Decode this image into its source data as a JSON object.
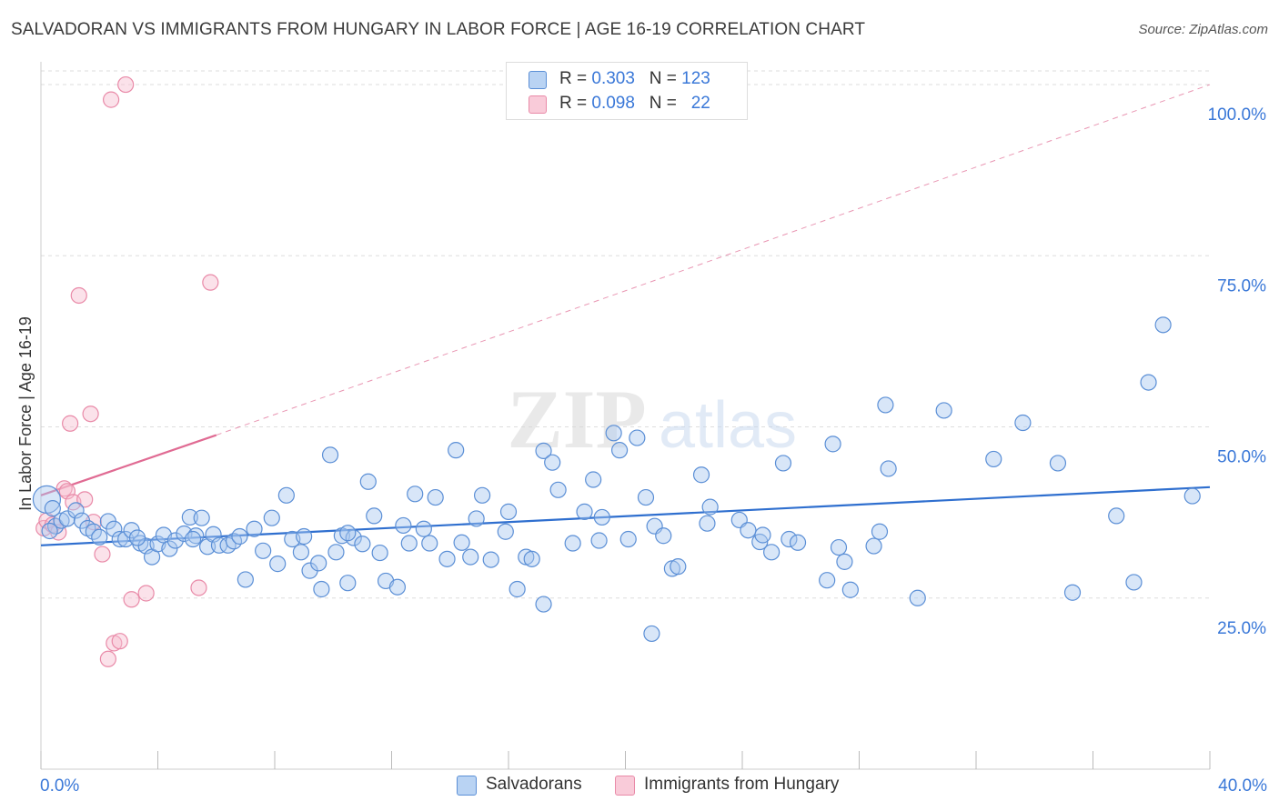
{
  "title": "SALVADORAN VS IMMIGRANTS FROM HUNGARY IN LABOR FORCE | AGE 16-19 CORRELATION CHART",
  "source": "Source: ZipAtlas.com",
  "watermark": {
    "zip": "ZIP",
    "atlas": "atlas"
  },
  "legend": {
    "r_label": "R =",
    "n_label": "N =",
    "series1": {
      "r": "0.303",
      "n": "123"
    },
    "series2": {
      "r": "0.098",
      "n": "22"
    }
  },
  "bottom_legend": {
    "series1": "Salvadorans",
    "series2": "Immigrants from Hungary"
  },
  "colors": {
    "blue_fill": "#a8c8f0",
    "blue_stroke": "#5b8fd6",
    "blue_line": "#2f6fcf",
    "pink_fill": "#f7bfd0",
    "pink_stroke": "#e98aa8",
    "pink_line": "#e06b93",
    "axis_text": "#3a78d8",
    "grid": "#dddddd"
  },
  "chart_data": {
    "type": "scatter",
    "title": "SALVADORAN VS IMMIGRANTS FROM HUNGARY IN LABOR FORCE | AGE 16-19 CORRELATION CHART",
    "xlabel": "",
    "ylabel": "In Labor Force | Age 16-19",
    "xlim": [
      0,
      40
    ],
    "ylim": [
      0,
      102
    ],
    "x_tick_labels": [
      {
        "value": 0,
        "label": "0.0%"
      },
      {
        "value": 40,
        "label": "40.0%"
      }
    ],
    "y_tick_labels": [
      {
        "value": 25,
        "label": "25.0%"
      },
      {
        "value": 50,
        "label": "50.0%"
      },
      {
        "value": 75,
        "label": "75.0%"
      },
      {
        "value": 100,
        "label": "100.0%"
      }
    ],
    "series": [
      {
        "name": "Salvadorans",
        "r": 0.303,
        "n": 123,
        "trend": {
          "x0": 0,
          "y0": 32.7,
          "x1": 40,
          "y1": 41.2
        },
        "points": [
          [
            0.2,
            39.4
          ],
          [
            0.5,
            35.5
          ],
          [
            0.7,
            36.3
          ],
          [
            0.9,
            36.6
          ],
          [
            1.2,
            37.8
          ],
          [
            1.4,
            36.3
          ],
          [
            1.6,
            35.2
          ],
          [
            1.8,
            34.7
          ],
          [
            2.0,
            33.9
          ],
          [
            2.3,
            36.2
          ],
          [
            2.5,
            35.1
          ],
          [
            2.7,
            33.6
          ],
          [
            2.9,
            33.6
          ],
          [
            3.1,
            34.9
          ],
          [
            3.4,
            33.0
          ],
          [
            3.6,
            32.6
          ],
          [
            3.8,
            31.0
          ],
          [
            4.0,
            32.9
          ],
          [
            4.2,
            34.2
          ],
          [
            4.4,
            32.2
          ],
          [
            4.6,
            33.4
          ],
          [
            4.9,
            34.4
          ],
          [
            5.1,
            36.8
          ],
          [
            5.3,
            34.1
          ],
          [
            5.5,
            36.7
          ],
          [
            5.7,
            32.5
          ],
          [
            5.9,
            34.3
          ],
          [
            6.1,
            32.7
          ],
          [
            6.4,
            32.7
          ],
          [
            6.6,
            33.3
          ],
          [
            6.8,
            34.0
          ],
          [
            7.0,
            27.7
          ],
          [
            7.3,
            35.1
          ],
          [
            7.6,
            31.9
          ],
          [
            7.9,
            36.7
          ],
          [
            8.1,
            30.0
          ],
          [
            8.4,
            40.0
          ],
          [
            8.6,
            33.6
          ],
          [
            8.9,
            31.7
          ],
          [
            9.0,
            34.0
          ],
          [
            9.2,
            29.0
          ],
          [
            9.5,
            30.1
          ],
          [
            9.6,
            26.3
          ],
          [
            9.9,
            45.9
          ],
          [
            10.1,
            31.7
          ],
          [
            10.3,
            34.1
          ],
          [
            10.5,
            27.2
          ],
          [
            10.7,
            33.8
          ],
          [
            11.0,
            32.9
          ],
          [
            11.2,
            42.0
          ],
          [
            11.4,
            37.0
          ],
          [
            11.6,
            31.6
          ],
          [
            11.8,
            27.5
          ],
          [
            12.2,
            26.6
          ],
          [
            12.4,
            35.6
          ],
          [
            12.6,
            33.0
          ],
          [
            12.8,
            40.2
          ],
          [
            13.1,
            35.1
          ],
          [
            13.3,
            33.0
          ],
          [
            13.5,
            39.7
          ],
          [
            13.9,
            30.7
          ],
          [
            14.2,
            46.6
          ],
          [
            14.4,
            33.1
          ],
          [
            14.7,
            31.0
          ],
          [
            14.9,
            36.6
          ],
          [
            15.1,
            40.0
          ],
          [
            15.4,
            30.6
          ],
          [
            15.9,
            34.7
          ],
          [
            16.0,
            37.6
          ],
          [
            16.3,
            26.3
          ],
          [
            16.6,
            31.0
          ],
          [
            16.8,
            30.7
          ],
          [
            17.2,
            46.5
          ],
          [
            17.2,
            24.1
          ],
          [
            17.5,
            44.8
          ],
          [
            17.7,
            40.8
          ],
          [
            18.2,
            33.0
          ],
          [
            18.6,
            37.6
          ],
          [
            18.9,
            42.3
          ],
          [
            19.1,
            33.4
          ],
          [
            19.2,
            36.8
          ],
          [
            19.6,
            49.1
          ],
          [
            19.8,
            46.6
          ],
          [
            20.1,
            33.6
          ],
          [
            20.4,
            48.4
          ],
          [
            20.7,
            39.7
          ],
          [
            21.0,
            35.5
          ],
          [
            21.3,
            34.1
          ],
          [
            21.6,
            29.3
          ],
          [
            21.8,
            29.6
          ],
          [
            22.6,
            43.0
          ],
          [
            22.8,
            35.9
          ],
          [
            22.9,
            38.3
          ],
          [
            23.9,
            36.4
          ],
          [
            24.2,
            34.9
          ],
          [
            24.6,
            33.2
          ],
          [
            25.0,
            31.7
          ],
          [
            25.4,
            44.7
          ],
          [
            25.6,
            33.6
          ],
          [
            25.9,
            33.1
          ],
          [
            26.9,
            27.6
          ],
          [
            27.1,
            47.5
          ],
          [
            27.3,
            32.4
          ],
          [
            27.5,
            30.3
          ],
          [
            27.7,
            26.2
          ],
          [
            28.5,
            32.6
          ],
          [
            28.7,
            34.7
          ],
          [
            28.9,
            53.2
          ],
          [
            29.0,
            43.9
          ],
          [
            30.0,
            25.0
          ],
          [
            30.9,
            52.4
          ],
          [
            32.6,
            45.3
          ],
          [
            33.6,
            50.6
          ],
          [
            34.8,
            44.7
          ],
          [
            35.3,
            25.8
          ],
          [
            36.8,
            37.0
          ],
          [
            37.4,
            27.3
          ],
          [
            37.9,
            56.5
          ],
          [
            38.4,
            64.9
          ],
          [
            39.4,
            39.9
          ],
          [
            0.3,
            34.8
          ],
          [
            0.4,
            38.1
          ],
          [
            3.3,
            33.8
          ],
          [
            5.2,
            33.6
          ],
          [
            24.7,
            34.2
          ],
          [
            20.9,
            19.8
          ],
          [
            10.5,
            34.5
          ]
        ]
      },
      {
        "name": "Immigrants from Hungary",
        "r": 0.098,
        "n": 22,
        "trend": {
          "x0": 0,
          "y0": 40.0,
          "x1": 6.0,
          "y1": 48.8,
          "dashed_to": {
            "x": 40,
            "y": 100.0
          }
        },
        "points": [
          [
            0.1,
            35.2
          ],
          [
            0.2,
            36.3
          ],
          [
            0.4,
            35.7
          ],
          [
            0.6,
            34.6
          ],
          [
            0.8,
            41.0
          ],
          [
            0.9,
            40.6
          ],
          [
            1.1,
            39.0
          ],
          [
            1.3,
            69.2
          ],
          [
            1.5,
            39.4
          ],
          [
            1.7,
            51.9
          ],
          [
            1.8,
            36.1
          ],
          [
            2.1,
            31.4
          ],
          [
            2.3,
            16.1
          ],
          [
            2.4,
            97.8
          ],
          [
            2.5,
            18.4
          ],
          [
            2.7,
            18.7
          ],
          [
            2.9,
            100.0
          ],
          [
            3.1,
            24.8
          ],
          [
            3.6,
            25.7
          ],
          [
            5.4,
            26.5
          ],
          [
            5.8,
            71.1
          ],
          [
            1.0,
            50.5
          ]
        ]
      }
    ]
  }
}
